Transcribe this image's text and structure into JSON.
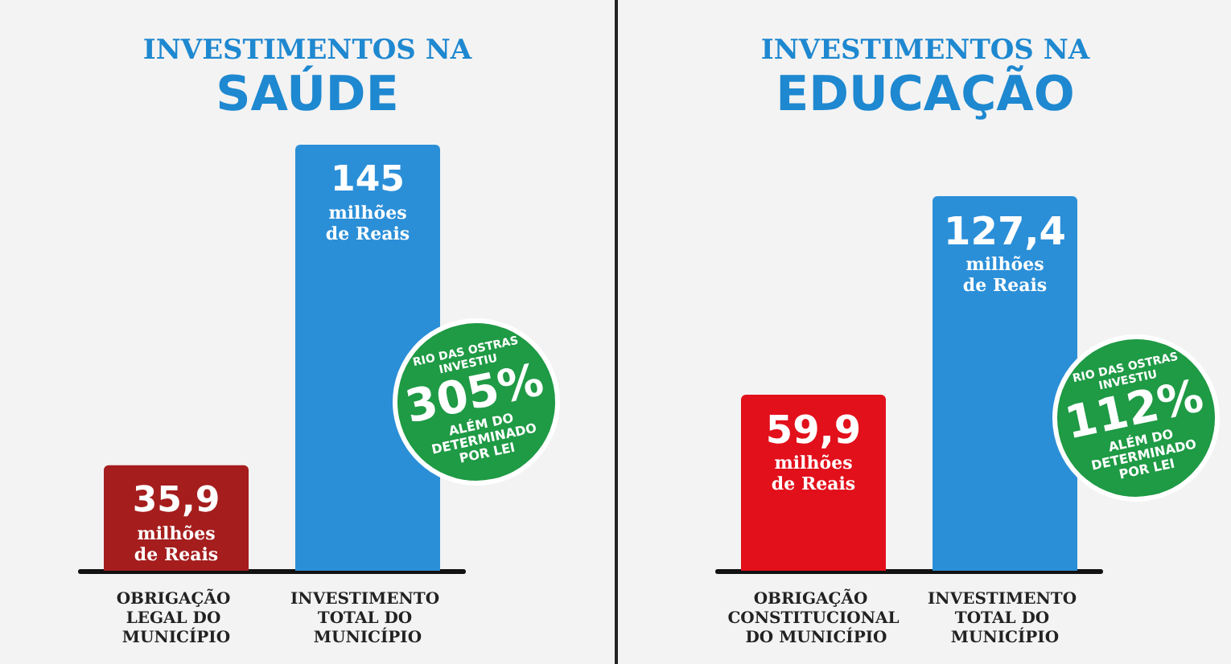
{
  "chart_data": [
    {
      "type": "bar",
      "title": "INVESTIMENTOS NA",
      "subtitle": "SAÚDE",
      "categories": [
        "OBRIGAÇÃO LEGAL DO MUNICÍPIO",
        "INVESTIMENTO TOTAL DO MUNICÍPIO"
      ],
      "values": [
        35.9,
        145
      ],
      "colors": [
        "#a51d1d",
        "#2b8fd8"
      ],
      "value_labels": [
        "35,9 milhões de Reais",
        "145 milhões de Reais"
      ],
      "annotations": [
        "RIO DAS OSTRAS INVESTIU",
        "305%",
        "ALÉM DO DETERMINADO POR LEI"
      ]
    },
    {
      "type": "bar",
      "title": "INVESTIMENTOS NA",
      "subtitle": "EDUCAÇÃO",
      "categories": [
        "OBRIGAÇÃO CONSTITUCIONAL DO MUNICÍPIO",
        "INVESTIMENTO TOTAL DO MUNICÍPIO"
      ],
      "values": [
        59.9,
        127.4
      ],
      "colors": [
        "#e2101b",
        "#2b8fd8"
      ],
      "value_labels": [
        "59,9 milhões de Reais",
        "127,4 milhões de Reais"
      ],
      "annotations": [
        "RIO DAS OSTRAS INVESTIU",
        "112%",
        "ALÉM DO DETERMINADO POR LEI"
      ]
    }
  ]
}
